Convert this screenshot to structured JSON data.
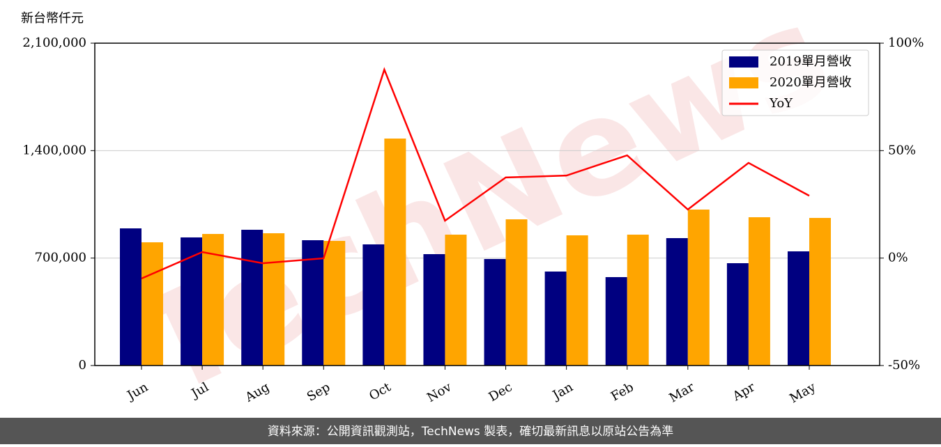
{
  "chart_data": {
    "type": "bar_line",
    "y_label": "新台幣仟元",
    "watermark": "TechNews",
    "footer": "資料來源：公開資訊觀測站，TechNews 製表，確切最新訊息以原站公告為準",
    "categories": [
      "Jun",
      "Jul",
      "Aug",
      "Sep",
      "Oct",
      "Nov",
      "Dec",
      "Jan",
      "Feb",
      "Mar",
      "Apr",
      "May"
    ],
    "series": [
      {
        "name": "2019單月營收",
        "color": "#000080",
        "type": "bar",
        "values": [
          893500,
          834600,
          884400,
          816400,
          789200,
          725700,
          694000,
          612300,
          576000,
          830000,
          666700,
          743800
        ]
      },
      {
        "name": "2020單月營收",
        "color": "#ffa500",
        "type": "bar",
        "values": [
          802800,
          857200,
          861800,
          811900,
          1478600,
          852700,
          952500,
          848200,
          852700,
          1016000,
          966100,
          961600
        ]
      },
      {
        "name": "YoY",
        "color": "#ff0000",
        "type": "line",
        "axis": "y2",
        "values": [
          -9.5,
          2.8,
          -2.4,
          -0.1,
          87.7,
          17.4,
          37.5,
          38.4,
          47.8,
          22.6,
          44.3,
          29.0
        ]
      }
    ],
    "ylim": [
      0,
      2100000
    ],
    "yticks": [
      0,
      {
        "value": 700000,
        "label": "700,000"
      },
      {
        "value": 1400000,
        "label": "1,400,000"
      },
      {
        "value": 2100000,
        "label": "2,100,000"
      }
    ],
    "y2lim": [
      -50,
      100
    ],
    "y2ticks": [
      {
        "value": -50,
        "label": "-50%"
      },
      {
        "value": 0,
        "label": "0%"
      },
      {
        "value": 50,
        "label": "50%"
      },
      {
        "value": 100,
        "label": "100%"
      }
    ],
    "grid": true,
    "legend": "upper right"
  }
}
